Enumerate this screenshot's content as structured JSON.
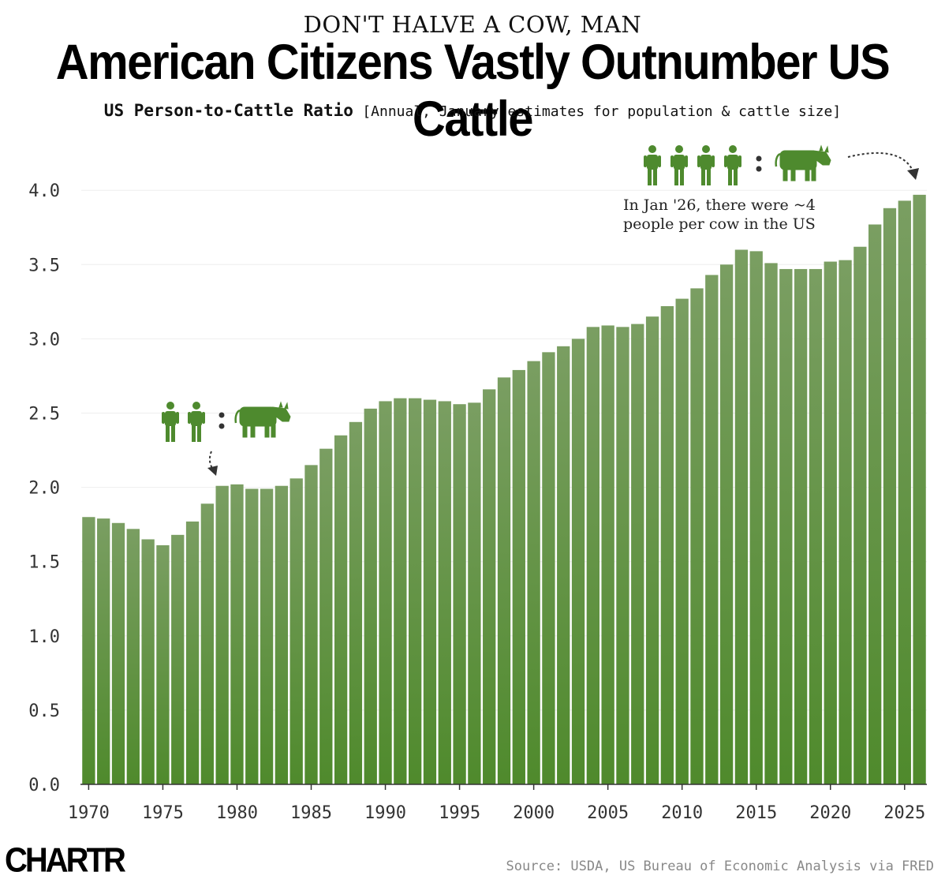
{
  "header": {
    "kicker": "DON'T HALVE A COW, MAN",
    "title": "American Citizens Vastly Outnumber US Cattle",
    "subtitle_main": "US Person-to-Cattle Ratio",
    "subtitle_note": "[Annual, January estimates for population & cattle size]"
  },
  "annotations": {
    "latest_line1": "In Jan '26, there were ~4",
    "latest_line2": "people per cow in the US"
  },
  "footer": {
    "logo": "CHARTR",
    "source": "Source: USDA, US Bureau of Economic Analysis via FRED"
  },
  "colors": {
    "bar_top": "#7a9e62",
    "bar_bottom": "#4f8a2c",
    "icon": "#4e8a2e",
    "grid": "#eeeeee",
    "axis": "#333333"
  },
  "chart_data": {
    "type": "bar",
    "x": [
      1970,
      1971,
      1972,
      1973,
      1974,
      1975,
      1976,
      1977,
      1978,
      1979,
      1980,
      1981,
      1982,
      1983,
      1984,
      1985,
      1986,
      1987,
      1988,
      1989,
      1990,
      1991,
      1992,
      1993,
      1994,
      1995,
      1996,
      1997,
      1998,
      1999,
      2000,
      2001,
      2002,
      2003,
      2004,
      2005,
      2006,
      2007,
      2008,
      2009,
      2010,
      2011,
      2012,
      2013,
      2014,
      2015,
      2016,
      2017,
      2018,
      2019,
      2020,
      2021,
      2022,
      2023,
      2024,
      2025,
      2026
    ],
    "values": [
      1.8,
      1.79,
      1.76,
      1.72,
      1.65,
      1.61,
      1.68,
      1.77,
      1.89,
      2.01,
      2.02,
      1.99,
      1.99,
      2.01,
      2.06,
      2.15,
      2.26,
      2.35,
      2.44,
      2.53,
      2.58,
      2.6,
      2.6,
      2.59,
      2.58,
      2.56,
      2.57,
      2.66,
      2.74,
      2.79,
      2.85,
      2.91,
      2.95,
      3.0,
      3.08,
      3.09,
      3.08,
      3.1,
      3.15,
      3.22,
      3.27,
      3.34,
      3.43,
      3.5,
      3.6,
      3.59,
      3.51,
      3.47,
      3.47,
      3.47,
      3.52,
      3.53,
      3.62,
      3.77,
      3.88,
      3.93,
      3.97
    ],
    "xticks": [
      "1970",
      "1975",
      "1980",
      "1985",
      "1990",
      "1995",
      "2000",
      "2005",
      "2010",
      "2015",
      "2020",
      "2025"
    ],
    "xtick_values": [
      1970,
      1975,
      1980,
      1985,
      1990,
      1995,
      2000,
      2005,
      2010,
      2015,
      2020,
      2025
    ],
    "yticks": [
      "0.0",
      "0.5",
      "1.0",
      "1.5",
      "2.0",
      "2.5",
      "3.0",
      "3.5",
      "4.0"
    ],
    "ytick_values": [
      0,
      0.5,
      1,
      1.5,
      2,
      2.5,
      3,
      3.5,
      4
    ],
    "ylim": [
      0,
      4.1
    ],
    "grid": true
  }
}
